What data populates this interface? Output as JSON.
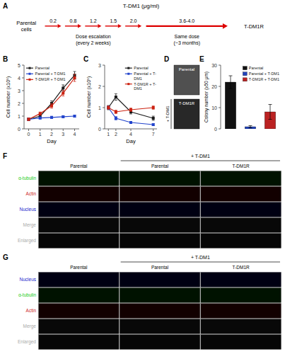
{
  "chart_data": [
    {
      "type": "timeline",
      "title": "A",
      "color": "#dd0000",
      "annotations": {
        "unit": "T-DM1 (μg/ml)",
        "start": "Parental\ncells",
        "end": "T-DM1R",
        "stages": [
          {
            "label": "Dose escalation\n(every 2 weeks)",
            "doses": [
              "0.2",
              "0.8",
              "1.2",
              "1.5",
              "2.0"
            ]
          },
          {
            "label": "Same dose\n(~3 months)",
            "doses": [
              "3.6-4.0"
            ]
          }
        ]
      }
    },
    {
      "type": "line",
      "title": "B",
      "xlabel": "Day",
      "ylabel": "Cell number (x10⁵)",
      "x": [
        0,
        1,
        2,
        3,
        4
      ],
      "xlim": [
        -0.4,
        4.4
      ],
      "ylim": [
        0,
        5
      ],
      "xticks": [
        0,
        1,
        2,
        3,
        4
      ],
      "yticks": [
        0,
        1,
        2,
        3,
        4,
        5
      ],
      "marker": "square",
      "legend": "upper left",
      "series": [
        {
          "name": "Parental",
          "color": "#1a1a1a",
          "values": [
            0.75,
            1.0,
            2.0,
            3.2,
            4.2
          ],
          "errors": [
            0.1,
            0.15,
            0.2,
            0.25,
            0.3
          ]
        },
        {
          "name": "Parental + T-DM1",
          "color": "#2244cc",
          "values": [
            0.75,
            0.85,
            0.9,
            0.95,
            1.0
          ],
          "errors": [
            0.08,
            0.08,
            0.08,
            0.08,
            0.08
          ]
        },
        {
          "name": "T-DM1R + T-DM1",
          "color": "#cc2211",
          "values": [
            0.75,
            1.2,
            1.8,
            2.8,
            4.0
          ],
          "errors": [
            0.1,
            0.12,
            0.18,
            0.22,
            0.28
          ]
        }
      ]
    },
    {
      "type": "line",
      "title": "C",
      "xlabel": "Day",
      "ylabel": "Cell number (x10⁵)",
      "x": [
        1,
        2,
        4,
        7
      ],
      "xlim": [
        0.5,
        7.5
      ],
      "ylim": [
        0,
        3
      ],
      "xticks": [
        1,
        2,
        4,
        7
      ],
      "yticks": [
        0,
        1,
        2,
        3
      ],
      "marker": "square",
      "legend": "upper right",
      "series": [
        {
          "name": "Parental",
          "color": "#1a1a1a",
          "values": [
            1.0,
            1.5,
            0.8,
            0.5
          ],
          "errors": [
            0.1,
            0.15,
            0.1,
            0.1
          ]
        },
        {
          "name": "Parental + T-\nDM1",
          "color": "#2244cc",
          "values": [
            1.0,
            0.5,
            0.3,
            0.2
          ],
          "errors": [
            0.08,
            0.08,
            0.05,
            0.05
          ]
        },
        {
          "name": "T-DM1R + T-\nDM1",
          "color": "#cc2211",
          "values": [
            1.0,
            0.8,
            0.9,
            1.0
          ],
          "errors": [
            0.08,
            0.08,
            0.08,
            0.08
          ]
        }
      ]
    },
    {
      "type": "image",
      "title": "D",
      "categories": [
        "Parental",
        "T-DM1R"
      ],
      "colors": [
        "#505050",
        "#282828"
      ],
      "annotations": [
        "+ T-DM1"
      ]
    },
    {
      "type": "bar",
      "title": "E",
      "ylabel": "Colony number (≥50 μm)",
      "categories": [
        "Parental",
        "Parental + T-DM1",
        "T-DM1R + T-DM1"
      ],
      "values": [
        22,
        1,
        8
      ],
      "errors": [
        3.0,
        0.5,
        3.5
      ],
      "colors": [
        "#111111",
        "#2244bb",
        "#bb2222"
      ],
      "ylim": [
        0,
        30
      ],
      "yticks": [
        0,
        10,
        20,
        30
      ],
      "legend": "upper right",
      "tick_labels": "y"
    },
    {
      "type": "image_grid",
      "title": "F",
      "annotations": [
        "+ T-DM1"
      ],
      "columns": [
        "Parental",
        "Parental",
        "T-DM1R"
      ],
      "rows": [
        {
          "name": "α-tubulin",
          "color": "#22cc22",
          "background": "#001200"
        },
        {
          "name": "Actin",
          "color": "#cc2222",
          "background": "#120000"
        },
        {
          "name": "Nucleus",
          "color": "#2222cc",
          "background": "#000012"
        },
        {
          "name": "Merge",
          "color": "#aaaaaa",
          "background": "#080808"
        },
        {
          "name": "Enlarged",
          "color": "#aaaaaa",
          "background": "#060606"
        }
      ]
    },
    {
      "type": "image_grid",
      "title": "G",
      "annotations": [
        "+ T-DM1"
      ],
      "columns": [
        "Parental",
        "Parental",
        "T-DM1R"
      ],
      "rows": [
        {
          "name": "Nucleus",
          "color": "#2222cc",
          "background": "#000012"
        },
        {
          "name": "α-tubulin",
          "color": "#22cc22",
          "background": "#001200"
        },
        {
          "name": "Actin",
          "color": "#cc2222",
          "background": "#120000"
        },
        {
          "name": "Merge",
          "color": "#aaaaaa",
          "background": "#080808"
        },
        {
          "name": "Enlarged",
          "color": "#aaaaaa",
          "background": "#060606"
        }
      ]
    }
  ]
}
